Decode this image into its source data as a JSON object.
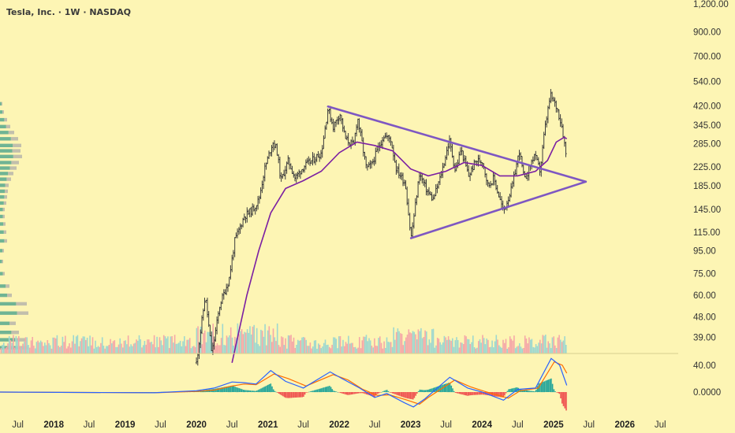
{
  "header": {
    "title": "Tesla, Inc. · 1W · NASDAQ"
  },
  "chart_data": {
    "type": "candlestick",
    "title": "Tesla, Inc. · 1W · NASDAQ",
    "y_scale": "log",
    "ylim": [
      33,
      1250
    ],
    "y_ticks": [
      "1,200.00",
      "900.00",
      "700.00",
      "540.00",
      "420.00",
      "345.00",
      "285.00",
      "225.00",
      "185.00",
      "145.00",
      "115.00",
      "95.00",
      "75.00",
      "60.00",
      "48.00",
      "39.00"
    ],
    "y_tick_values": [
      1200,
      900,
      700,
      540,
      420,
      345,
      285,
      225,
      185,
      145,
      115,
      95,
      75,
      60,
      48,
      39
    ],
    "x_range": [
      "2017-04-01",
      "2026-10-01"
    ],
    "x_ticks": [
      {
        "date": "2017-07-01",
        "label": "Jul",
        "year": false
      },
      {
        "date": "2018-01-01",
        "label": "2018",
        "year": true
      },
      {
        "date": "2018-07-01",
        "label": "Jul",
        "year": false
      },
      {
        "date": "2019-01-01",
        "label": "2019",
        "year": true
      },
      {
        "date": "2019-07-01",
        "label": "Jul",
        "year": false
      },
      {
        "date": "2020-01-01",
        "label": "2020",
        "year": true
      },
      {
        "date": "2020-07-01",
        "label": "Jul",
        "year": false
      },
      {
        "date": "2021-01-01",
        "label": "2021",
        "year": true
      },
      {
        "date": "2021-07-01",
        "label": "Jul",
        "year": false
      },
      {
        "date": "2022-01-01",
        "label": "2022",
        "year": true
      },
      {
        "date": "2022-07-01",
        "label": "Jul",
        "year": false
      },
      {
        "date": "2023-01-01",
        "label": "2023",
        "year": true
      },
      {
        "date": "2023-07-01",
        "label": "Jul",
        "year": false
      },
      {
        "date": "2024-01-01",
        "label": "2024",
        "year": true
      },
      {
        "date": "2024-07-01",
        "label": "Jul",
        "year": false
      },
      {
        "date": "2025-01-01",
        "label": "2025",
        "year": true
      },
      {
        "date": "2025-07-01",
        "label": "Jul",
        "year": false
      },
      {
        "date": "2026-01-01",
        "label": "2026",
        "year": true
      },
      {
        "date": "2026-07-01",
        "label": "Jul",
        "year": false
      }
    ],
    "price_path": [
      [
        "2020-01-01",
        30
      ],
      [
        "2020-02-15",
        60
      ],
      [
        "2020-03-20",
        33
      ],
      [
        "2020-05-01",
        55
      ],
      [
        "2020-06-15",
        70
      ],
      [
        "2020-07-15",
        105
      ],
      [
        "2020-09-01",
        135
      ],
      [
        "2020-10-15",
        145
      ],
      [
        "2020-11-15",
        160
      ],
      [
        "2020-12-15",
        220
      ],
      [
        "2021-01-25",
        290
      ],
      [
        "2021-02-15",
        270
      ],
      [
        "2021-03-08",
        195
      ],
      [
        "2021-04-15",
        240
      ],
      [
        "2021-05-20",
        200
      ],
      [
        "2021-07-01",
        225
      ],
      [
        "2021-08-15",
        240
      ],
      [
        "2021-10-01",
        260
      ],
      [
        "2021-11-04",
        410
      ],
      [
        "2021-12-01",
        340
      ],
      [
        "2022-01-04",
        390
      ],
      [
        "2022-02-01",
        300
      ],
      [
        "2022-03-15",
        280
      ],
      [
        "2022-04-04",
        375
      ],
      [
        "2022-05-20",
        220
      ],
      [
        "2022-06-15",
        230
      ],
      [
        "2022-08-15",
        310
      ],
      [
        "2022-09-20",
        300
      ],
      [
        "2022-10-20",
        220
      ],
      [
        "2022-12-05",
        190
      ],
      [
        "2023-01-03",
        108
      ],
      [
        "2023-02-15",
        210
      ],
      [
        "2023-03-20",
        180
      ],
      [
        "2023-04-25",
        160
      ],
      [
        "2023-06-01",
        200
      ],
      [
        "2023-07-18",
        295
      ],
      [
        "2023-08-18",
        215
      ],
      [
        "2023-09-15",
        270
      ],
      [
        "2023-10-25",
        205
      ],
      [
        "2023-12-01",
        240
      ],
      [
        "2024-01-05",
        238
      ],
      [
        "2024-02-01",
        185
      ],
      [
        "2024-03-01",
        200
      ],
      [
        "2024-04-20",
        142
      ],
      [
        "2024-06-01",
        180
      ],
      [
        "2024-07-10",
        265
      ],
      [
        "2024-08-05",
        195
      ],
      [
        "2024-09-25",
        255
      ],
      [
        "2024-10-25",
        215
      ],
      [
        "2024-11-15",
        320
      ],
      [
        "2024-12-16",
        470
      ],
      [
        "2025-01-20",
        410
      ],
      [
        "2025-02-15",
        335
      ],
      [
        "2025-03-10",
        240
      ]
    ],
    "ma_path": [
      [
        "2020-07-01",
        30
      ],
      [
        "2020-09-15",
        60
      ],
      [
        "2020-11-15",
        95
      ],
      [
        "2021-01-15",
        140
      ],
      [
        "2021-04-01",
        180
      ],
      [
        "2021-07-01",
        195
      ],
      [
        "2021-10-01",
        215
      ],
      [
        "2022-01-01",
        260
      ],
      [
        "2022-04-01",
        290
      ],
      [
        "2022-07-01",
        280
      ],
      [
        "2022-10-01",
        265
      ],
      [
        "2023-01-01",
        220
      ],
      [
        "2023-04-01",
        205
      ],
      [
        "2023-07-01",
        215
      ],
      [
        "2023-10-01",
        235
      ],
      [
        "2024-01-01",
        228
      ],
      [
        "2024-04-01",
        205
      ],
      [
        "2024-07-01",
        205
      ],
      [
        "2024-10-01",
        215
      ],
      [
        "2024-12-01",
        240
      ],
      [
        "2025-01-15",
        290
      ],
      [
        "2025-02-25",
        305
      ],
      [
        "2025-03-10",
        300
      ]
    ],
    "trendlines": [
      {
        "from": [
          "2021-11-04",
          418
        ],
        "to": [
          "2025-06-15",
          193
        ]
      },
      {
        "from": [
          "2023-01-03",
          108
        ],
        "to": [
          "2025-06-15",
          193
        ]
      }
    ],
    "volume_profile": [
      {
        "price": 430,
        "len": 3
      },
      {
        "price": 395,
        "len": 5
      },
      {
        "price": 365,
        "len": 9
      },
      {
        "price": 340,
        "len": 13
      },
      {
        "price": 320,
        "len": 18
      },
      {
        "price": 300,
        "len": 23
      },
      {
        "price": 280,
        "len": 27
      },
      {
        "price": 265,
        "len": 26
      },
      {
        "price": 250,
        "len": 28
      },
      {
        "price": 235,
        "len": 24
      },
      {
        "price": 222,
        "len": 21
      },
      {
        "price": 210,
        "len": 17
      },
      {
        "price": 198,
        "len": 14
      },
      {
        "price": 186,
        "len": 11
      },
      {
        "price": 175,
        "len": 10
      },
      {
        "price": 165,
        "len": 9
      },
      {
        "price": 155,
        "len": 8
      },
      {
        "price": 145,
        "len": 6
      },
      {
        "price": 135,
        "len": 6
      },
      {
        "price": 125,
        "len": 7
      },
      {
        "price": 115,
        "len": 8
      },
      {
        "price": 105,
        "len": 9
      },
      {
        "price": 95,
        "len": 5
      },
      {
        "price": 85,
        "len": 4
      },
      {
        "price": 75,
        "len": 6
      },
      {
        "price": 66,
        "len": 12
      },
      {
        "price": 60,
        "len": 15
      },
      {
        "price": 55,
        "len": 34
      },
      {
        "price": 50,
        "len": 36
      },
      {
        "price": 45,
        "len": 20
      },
      {
        "price": 41,
        "len": 24
      },
      {
        "price": 38,
        "len": 32
      },
      {
        "price": 35,
        "len": 36
      }
    ],
    "macd": {
      "ylim": [
        -28,
        55
      ],
      "y_ticks": [
        "40.00",
        "0.0000"
      ],
      "y_tick_values": [
        40,
        0
      ],
      "macd_path": [
        [
          "2017-04-01",
          0
        ],
        [
          "2019-06-01",
          -1
        ],
        [
          "2020-01-01",
          2
        ],
        [
          "2020-04-01",
          6
        ],
        [
          "2020-07-01",
          15
        ],
        [
          "2020-09-01",
          14
        ],
        [
          "2020-11-01",
          12
        ],
        [
          "2021-01-15",
          32
        ],
        [
          "2021-04-01",
          16
        ],
        [
          "2021-07-01",
          6
        ],
        [
          "2021-11-15",
          30
        ],
        [
          "2022-01-15",
          20
        ],
        [
          "2022-04-15",
          6
        ],
        [
          "2022-07-01",
          -8
        ],
        [
          "2022-09-01",
          -2
        ],
        [
          "2022-12-01",
          -16
        ],
        [
          "2023-01-15",
          -22
        ],
        [
          "2023-03-15",
          -10
        ],
        [
          "2023-07-20",
          22
        ],
        [
          "2023-10-20",
          6
        ],
        [
          "2024-01-01",
          0
        ],
        [
          "2024-04-20",
          -12
        ],
        [
          "2024-07-01",
          4
        ],
        [
          "2024-10-01",
          6
        ],
        [
          "2024-12-20",
          50
        ],
        [
          "2025-02-01",
          40
        ],
        [
          "2025-03-10",
          10
        ]
      ],
      "signal_path": [
        [
          "2017-04-01",
          0
        ],
        [
          "2019-06-01",
          -1
        ],
        [
          "2020-01-01",
          1
        ],
        [
          "2020-04-01",
          3
        ],
        [
          "2020-07-01",
          9
        ],
        [
          "2020-09-01",
          12
        ],
        [
          "2020-11-01",
          11
        ],
        [
          "2021-02-01",
          27
        ],
        [
          "2021-04-15",
          20
        ],
        [
          "2021-07-15",
          9
        ],
        [
          "2021-12-01",
          26
        ],
        [
          "2022-02-15",
          18
        ],
        [
          "2022-05-01",
          4
        ],
        [
          "2022-07-15",
          -5
        ],
        [
          "2022-09-15",
          -4
        ],
        [
          "2022-12-15",
          -12
        ],
        [
          "2023-02-15",
          -18
        ],
        [
          "2023-04-01",
          -8
        ],
        [
          "2023-08-15",
          18
        ],
        [
          "2023-11-01",
          8
        ],
        [
          "2024-01-15",
          1
        ],
        [
          "2024-05-15",
          -9
        ],
        [
          "2024-07-15",
          2
        ],
        [
          "2024-10-15",
          6
        ],
        [
          "2025-01-05",
          45
        ],
        [
          "2025-02-15",
          40
        ],
        [
          "2025-03-10",
          28
        ]
      ]
    },
    "colors": {
      "candle": "#3c3c3c",
      "ma": "#7b1fa2",
      "trendline": "#7e57c2",
      "macd_line": "#2962ff",
      "signal_line": "#ff6d00",
      "hist_pos": "#26a69a",
      "hist_neg": "#ef5350",
      "vol_up": "#9ed8cf",
      "vol_down": "#f5a8a8",
      "profile_up": "#3f9e8a",
      "profile_down": "#a8a8a8"
    }
  }
}
